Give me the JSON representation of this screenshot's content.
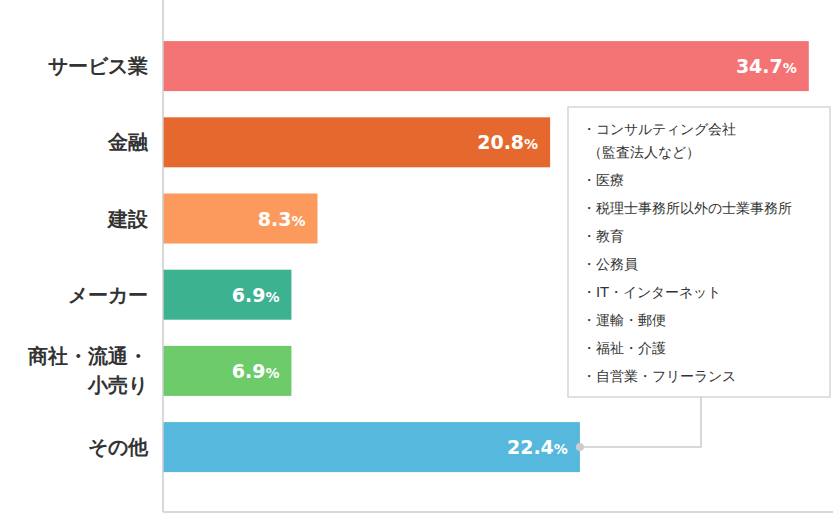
{
  "chart_data": {
    "type": "bar",
    "orientation": "horizontal",
    "categories": [
      "サービス業",
      "金融",
      "建設",
      "メーカー",
      "商社・流通・\n小売り",
      "その他"
    ],
    "values": [
      34.7,
      20.8,
      8.3,
      6.9,
      6.9,
      22.4
    ],
    "value_labels": [
      "34.7%",
      "20.8%",
      "8.3%",
      "6.9%",
      "6.9%",
      "22.4%"
    ],
    "colors": [
      "#f47375",
      "#e5692e",
      "#fb9a5c",
      "#3db291",
      "#6dcb6a",
      "#55b8dc"
    ],
    "xlim": [
      0,
      36
    ],
    "data_labels": true,
    "tick_labels": false,
    "grid": false,
    "annotation": {
      "items": [
        [
          "・コンサルティング会社",
          "（監査法人など）"
        ],
        [
          "・医療"
        ],
        [
          "・税理士事務所以外の士業事務所"
        ],
        [
          "・教育"
        ],
        [
          "・公務員"
        ],
        [
          "・IT・インターネット"
        ],
        [
          "・運輸・郵便"
        ],
        [
          "・福祉・介護"
        ],
        [
          "・自営業・フリーランス"
        ]
      ]
    }
  }
}
